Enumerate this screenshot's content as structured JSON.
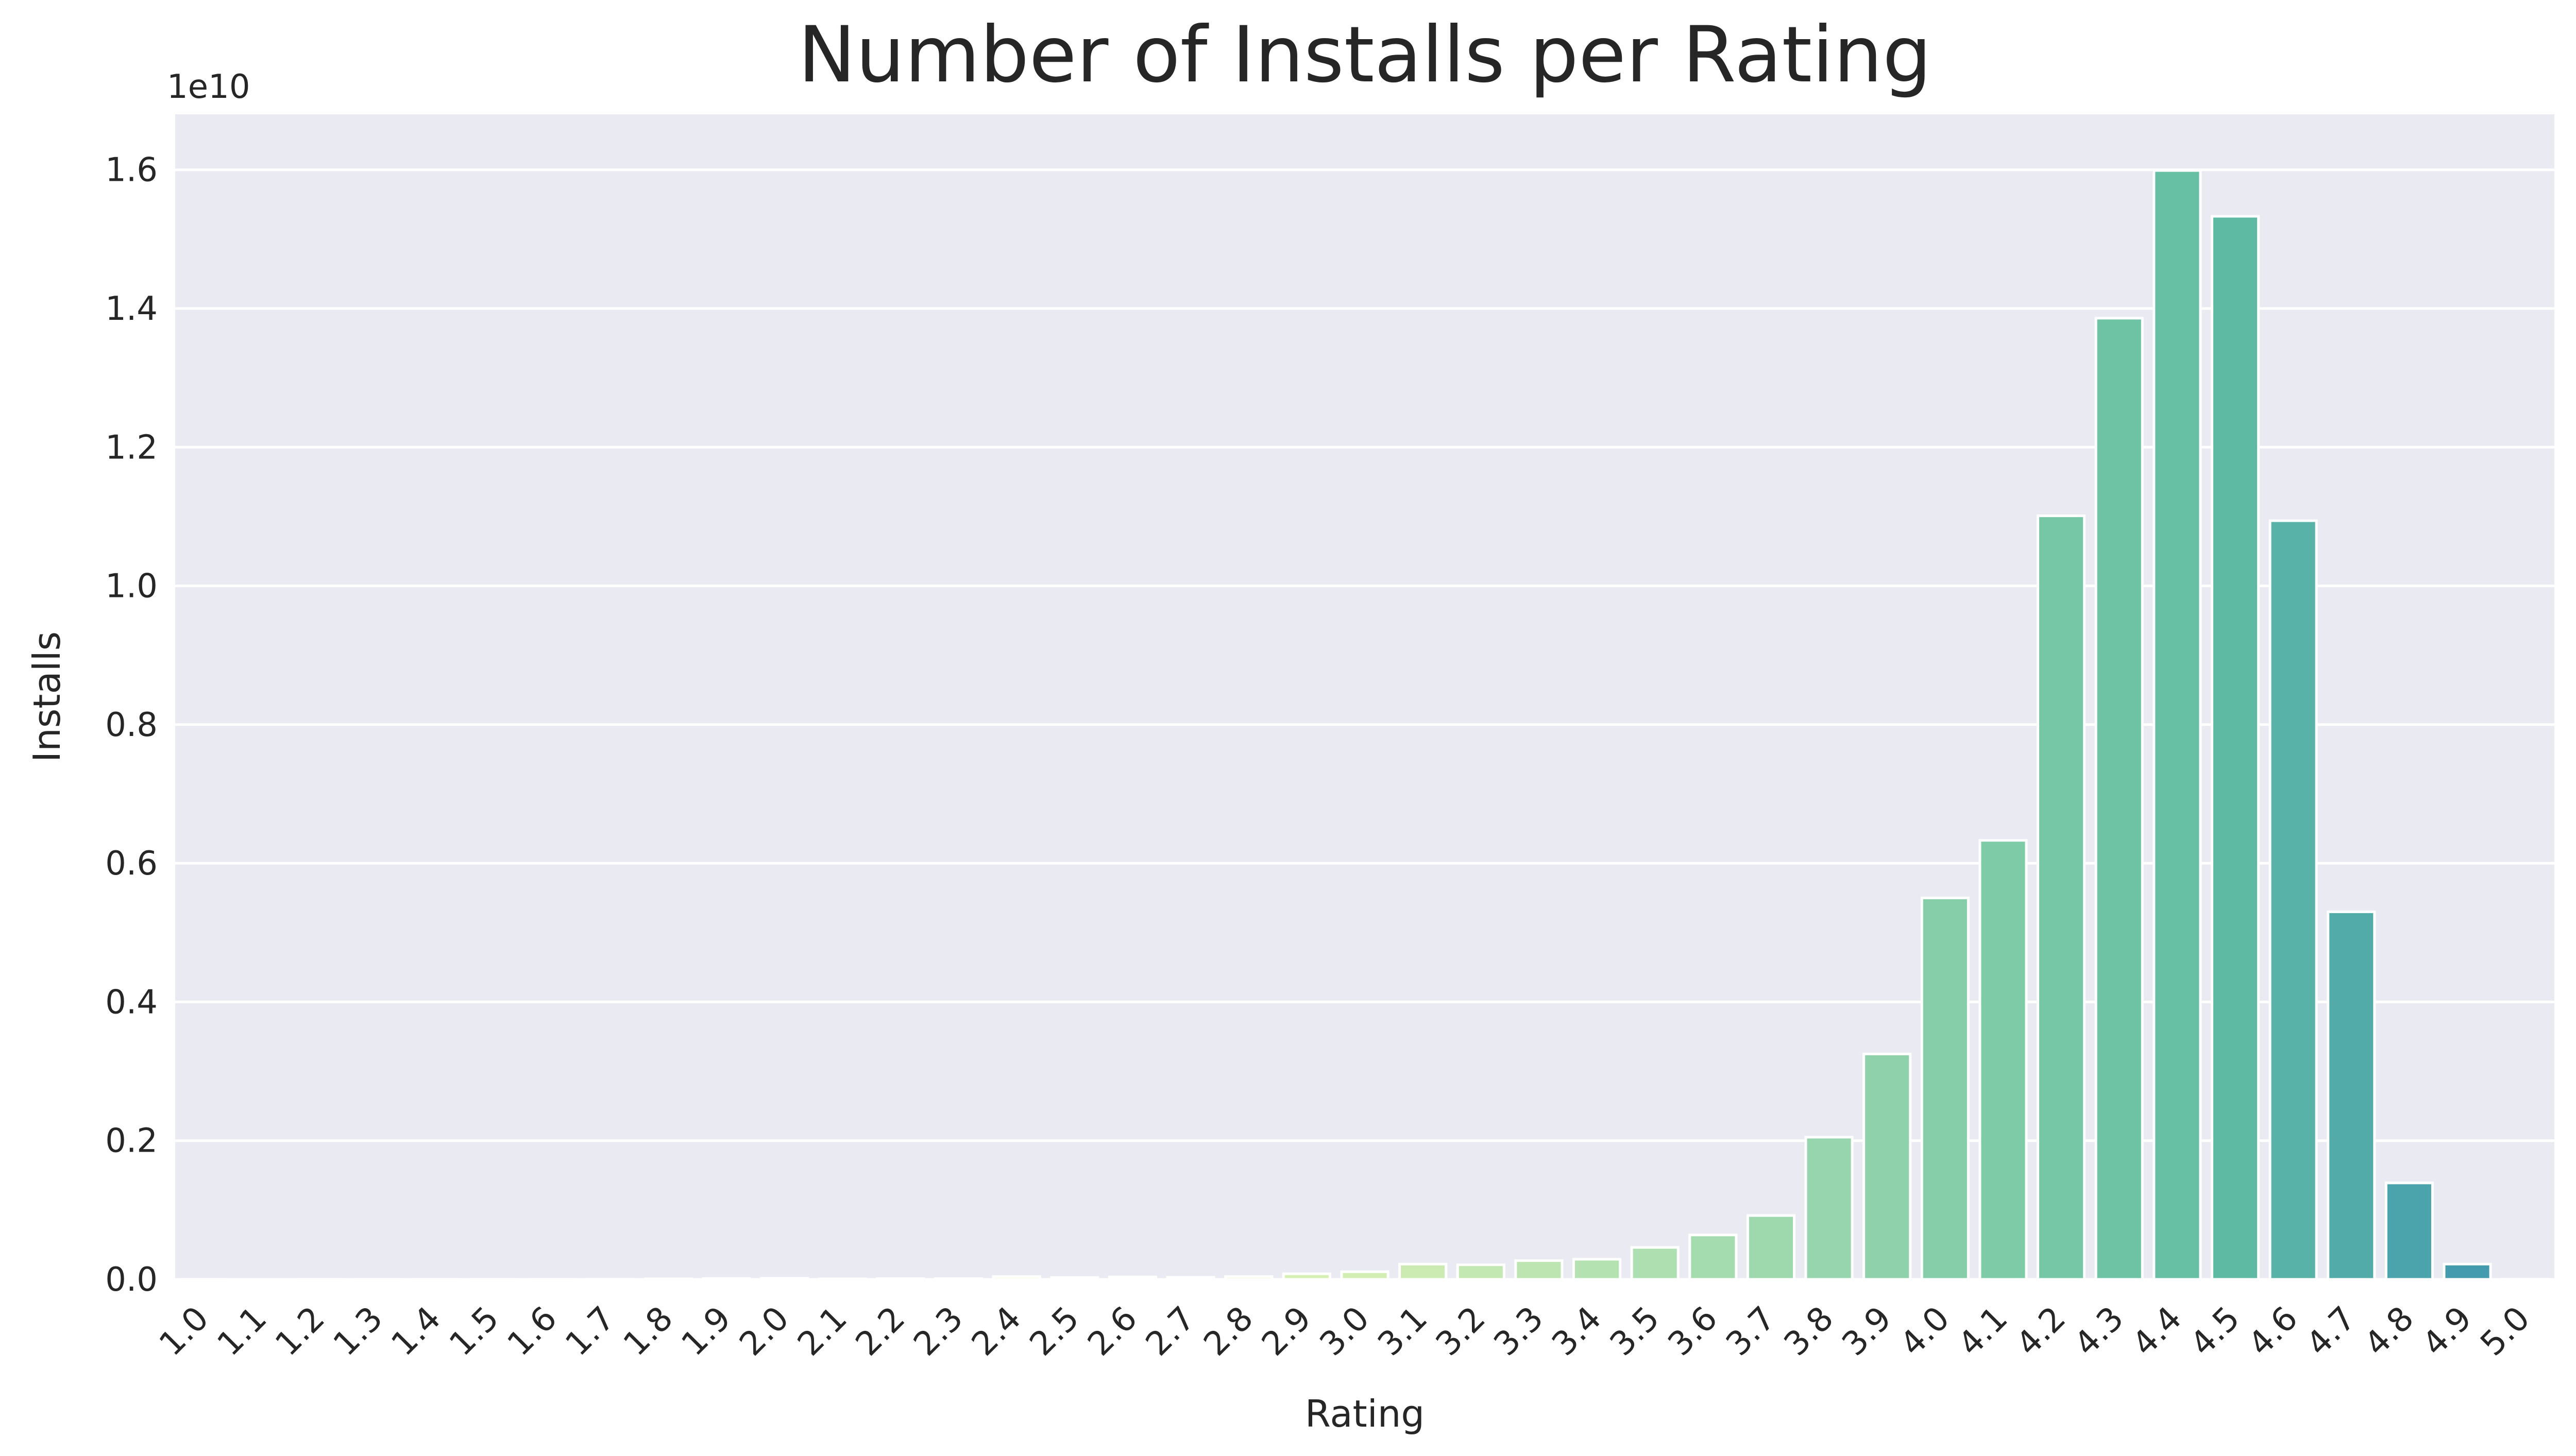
{
  "chart_data": {
    "type": "bar",
    "title": "Number of Installs per Rating",
    "xlabel": "Rating",
    "ylabel": "Installs",
    "y_scale_label": "1e10",
    "y_scale_factor": 10000000000.0,
    "ylim": [
      0,
      1.68
    ],
    "yticks": [
      0.0,
      0.2,
      0.4,
      0.6,
      0.8,
      1.0,
      1.2,
      1.4,
      1.6
    ],
    "ytick_labels": [
      "0.0",
      "0.2",
      "0.4",
      "0.6",
      "0.8",
      "1.0",
      "1.2",
      "1.4",
      "1.6"
    ],
    "categories": [
      "1.0",
      "1.1",
      "1.2",
      "1.3",
      "1.4",
      "1.5",
      "1.6",
      "1.7",
      "1.8",
      "1.9",
      "2.0",
      "2.1",
      "2.2",
      "2.3",
      "2.4",
      "2.5",
      "2.6",
      "2.7",
      "2.8",
      "2.9",
      "3.0",
      "3.1",
      "3.2",
      "3.3",
      "3.4",
      "3.5",
      "3.6",
      "3.7",
      "3.8",
      "3.9",
      "4.0",
      "4.1",
      "4.2",
      "4.3",
      "4.4",
      "4.5",
      "4.6",
      "4.7",
      "4.8",
      "4.9",
      "5.0"
    ],
    "values": [
      0.0001,
      0.0,
      0.0001,
      0.0001,
      0.0001,
      0.0001,
      0.0001,
      0.0003,
      0.0008,
      0.0012,
      0.0015,
      0.0007,
      0.001,
      0.001,
      0.004,
      0.0025,
      0.0035,
      0.003,
      0.004,
      0.008,
      0.011,
      0.022,
      0.021,
      0.027,
      0.029,
      0.046,
      0.064,
      0.092,
      0.205,
      0.325,
      0.55,
      0.633,
      1.101,
      1.386,
      1.599,
      1.533,
      1.094,
      0.53,
      0.139,
      0.022,
      0.0003
    ],
    "colors": [
      "#ffffe5",
      "#fefee2",
      "#fdfedf",
      "#fbfedb",
      "#fafdd8",
      "#f9fdd5",
      "#f8fdd2",
      "#f6fcce",
      "#f5fccb",
      "#f4fbc8",
      "#f2fbc4",
      "#f0fac0",
      "#eef9bc",
      "#ecf8b8",
      "#eaf7b4",
      "#e8f6b0",
      "#e3f4b0",
      "#dff3b1",
      "#daf1b2",
      "#d6efb2",
      "#d2eeb3",
      "#cbebb3",
      "#c4e8b2",
      "#bce5b1",
      "#b4e2b1",
      "#addfb0",
      "#a5dcaf",
      "#9ed9ae",
      "#96d5ad",
      "#8ed1ab",
      "#86ceaa",
      "#7ecba8",
      "#76c7a6",
      "#6ec3a5",
      "#67bfa4",
      "#5fbaa4",
      "#58b2a7",
      "#52aaa9",
      "#4ba3ac",
      "#459bae",
      "#3f94af"
    ],
    "grid": true,
    "legend": "none"
  }
}
